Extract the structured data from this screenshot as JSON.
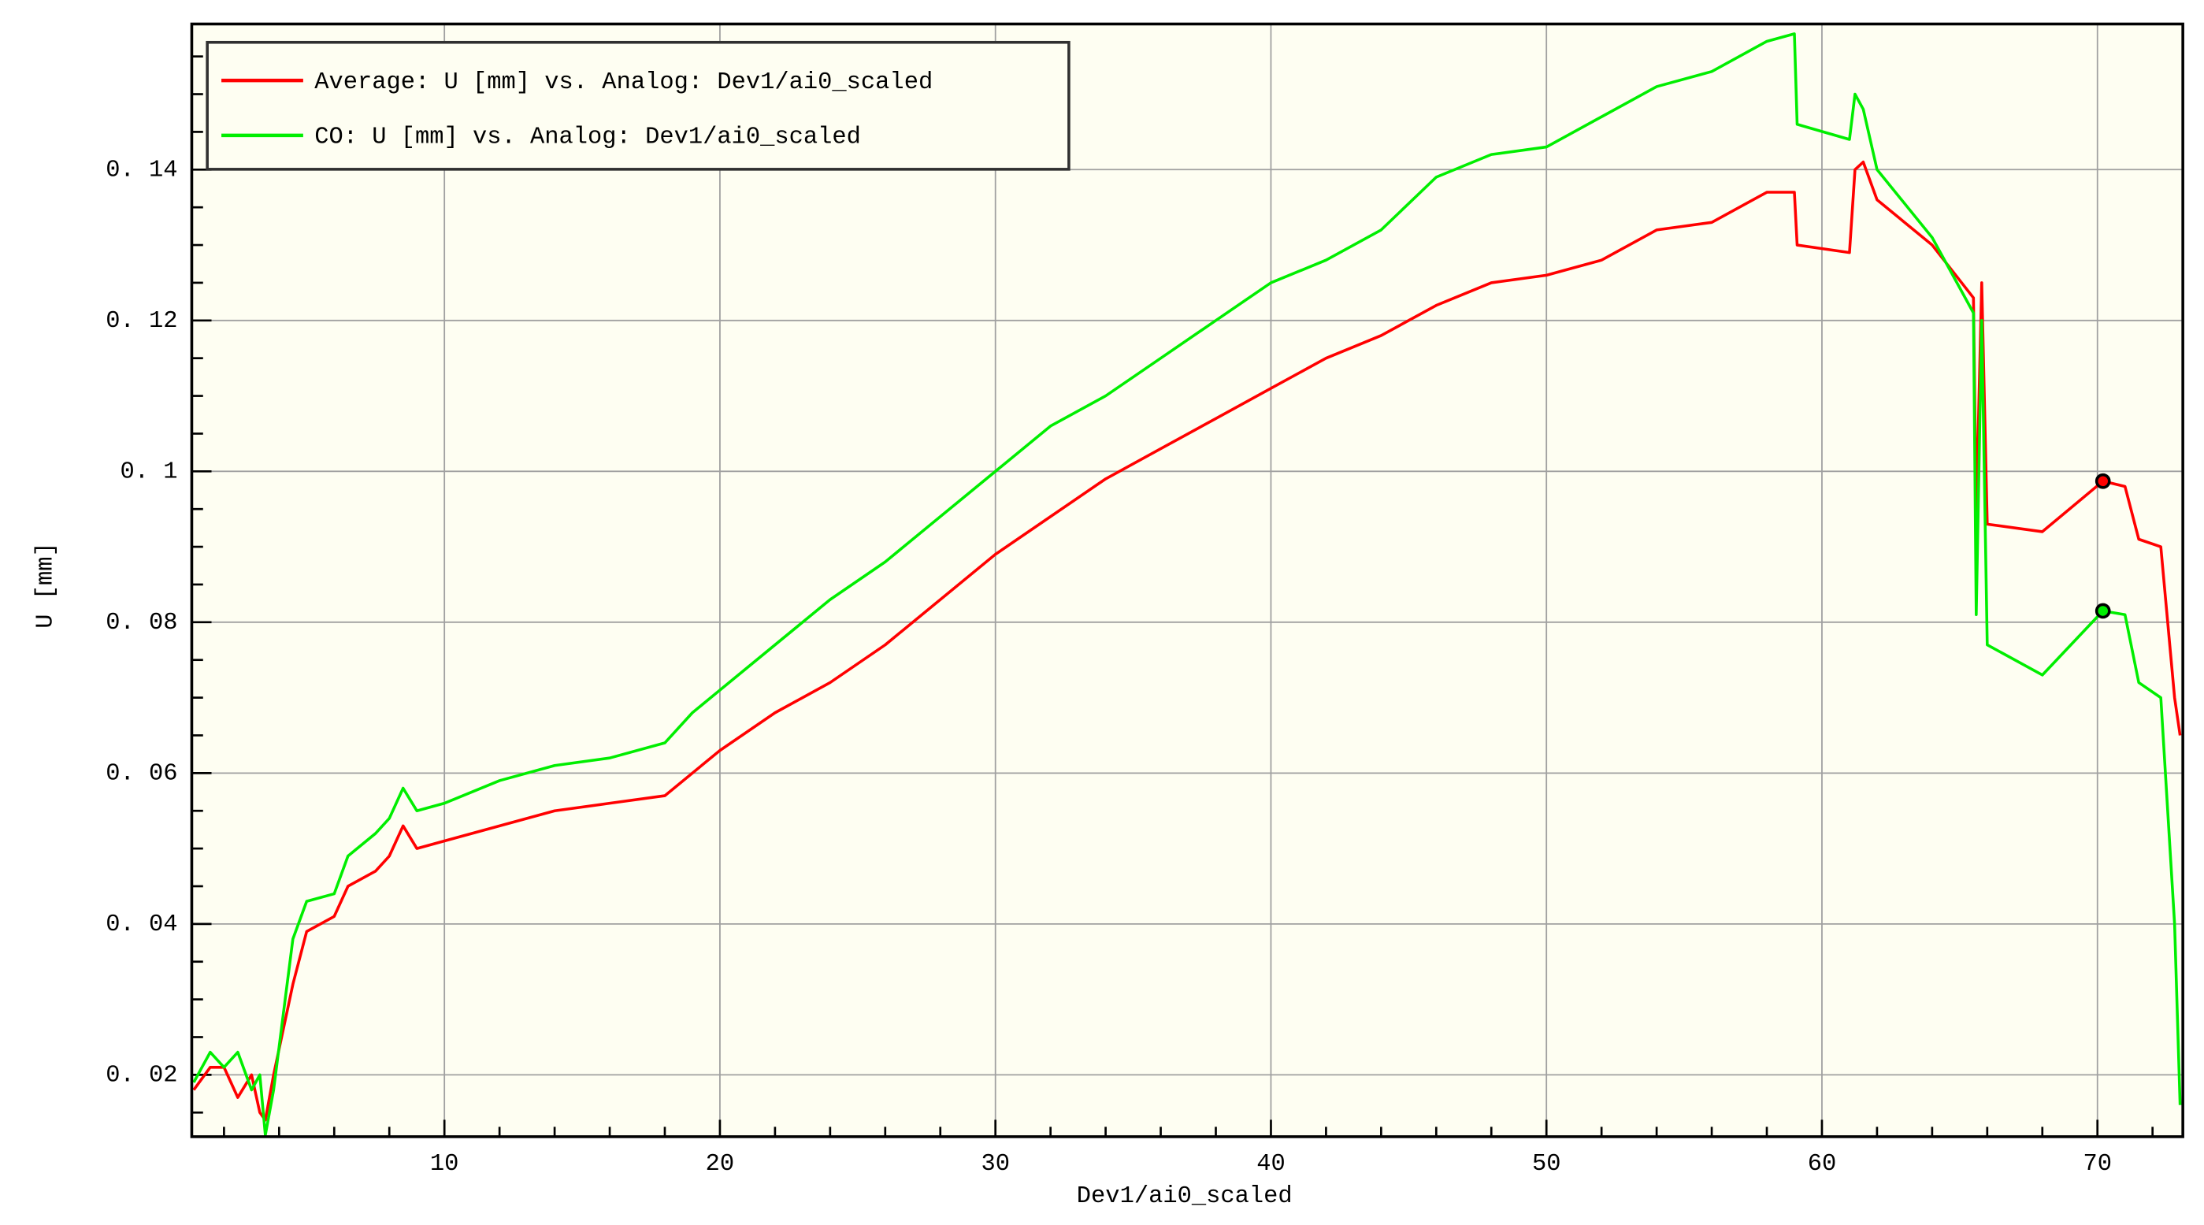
{
  "chart_data": {
    "type": "line",
    "xlabel": "Dev1/ai0_scaled",
    "ylabel": "U [mm]",
    "x": [
      0.9,
      1.5,
      2,
      2.5,
      3,
      3.3,
      3.5,
      3.8,
      4.5,
      5,
      6,
      6.5,
      7.5,
      8,
      8.5,
      9,
      10,
      12,
      14,
      16,
      18,
      19,
      20,
      22,
      24,
      26,
      28,
      30,
      32,
      34,
      36,
      38,
      40,
      42,
      44,
      46,
      48,
      50,
      52,
      54,
      56,
      58,
      59,
      59.1,
      61,
      61.2,
      61.5,
      62,
      64,
      65.5,
      65.6,
      65.8,
      66,
      68,
      70.2,
      71,
      71.5,
      72.3,
      72.8,
      73
    ],
    "series": [
      {
        "name": "Average: U [mm] vs. Analog: Dev1/ai0_scaled",
        "color": "#ff0000",
        "values": [
          0.018,
          0.021,
          0.021,
          0.017,
          0.02,
          0.015,
          0.014,
          0.02,
          0.032,
          0.039,
          0.041,
          0.045,
          0.047,
          0.049,
          0.053,
          0.05,
          0.051,
          0.053,
          0.055,
          0.056,
          0.057,
          0.06,
          0.063,
          0.068,
          0.072,
          0.077,
          0.083,
          0.089,
          0.094,
          0.099,
          0.103,
          0.107,
          0.111,
          0.115,
          0.118,
          0.122,
          0.125,
          0.126,
          0.128,
          0.132,
          0.133,
          0.137,
          0.137,
          0.13,
          0.129,
          0.14,
          0.141,
          0.136,
          0.13,
          0.123,
          0.094,
          0.125,
          0.093,
          0.092,
          0.0987,
          0.098,
          0.091,
          0.09,
          0.07,
          0.065
        ]
      },
      {
        "name": "CO: U [mm] vs. Analog: Dev1/ai0_scaled",
        "color": "#00ee00",
        "values": [
          0.019,
          0.023,
          0.021,
          0.023,
          0.018,
          0.02,
          0.012,
          0.018,
          0.038,
          0.043,
          0.044,
          0.049,
          0.052,
          0.054,
          0.058,
          0.055,
          0.056,
          0.059,
          0.061,
          0.062,
          0.064,
          0.068,
          0.071,
          0.077,
          0.083,
          0.088,
          0.094,
          0.1,
          0.106,
          0.11,
          0.115,
          0.12,
          0.125,
          0.128,
          0.132,
          0.139,
          0.142,
          0.143,
          0.147,
          0.151,
          0.153,
          0.157,
          0.158,
          0.146,
          0.144,
          0.15,
          0.148,
          0.14,
          0.131,
          0.121,
          0.081,
          0.12,
          0.077,
          0.073,
          0.0815,
          0.081,
          0.072,
          0.07,
          0.04,
          0.016
        ]
      }
    ],
    "cursor": {
      "x": 70.2,
      "values": [
        0.0987,
        0.0815
      ]
    },
    "xlim": [
      0.83,
      73.1
    ],
    "ylim": [
      0.0118,
      0.1593
    ],
    "xticks": [
      10,
      20,
      30,
      40,
      50,
      60,
      70
    ],
    "xminorticks": [
      2,
      4,
      6,
      8,
      12,
      14,
      16,
      18,
      22,
      24,
      26,
      28,
      32,
      34,
      36,
      38,
      42,
      44,
      46,
      48,
      52,
      54,
      56,
      58,
      62,
      64,
      66,
      68,
      72
    ],
    "yticks": [
      {
        "value": 0.02,
        "label": "0. 02"
      },
      {
        "value": 0.04,
        "label": "0. 04"
      },
      {
        "value": 0.06,
        "label": "0. 06"
      },
      {
        "value": 0.08,
        "label": "0. 08"
      },
      {
        "value": 0.1,
        "label": "0. 1"
      },
      {
        "value": 0.12,
        "label": "0. 12"
      },
      {
        "value": 0.14,
        "label": "0. 14"
      }
    ],
    "yminorticks": [
      0.015,
      0.025,
      0.03,
      0.035,
      0.045,
      0.05,
      0.055,
      0.065,
      0.07,
      0.075,
      0.085,
      0.09,
      0.095,
      0.105,
      0.11,
      0.115,
      0.125,
      0.13,
      0.135,
      0.145,
      0.15,
      0.155
    ],
    "grid": true,
    "background": "#fefef2",
    "legend": "upper left"
  }
}
